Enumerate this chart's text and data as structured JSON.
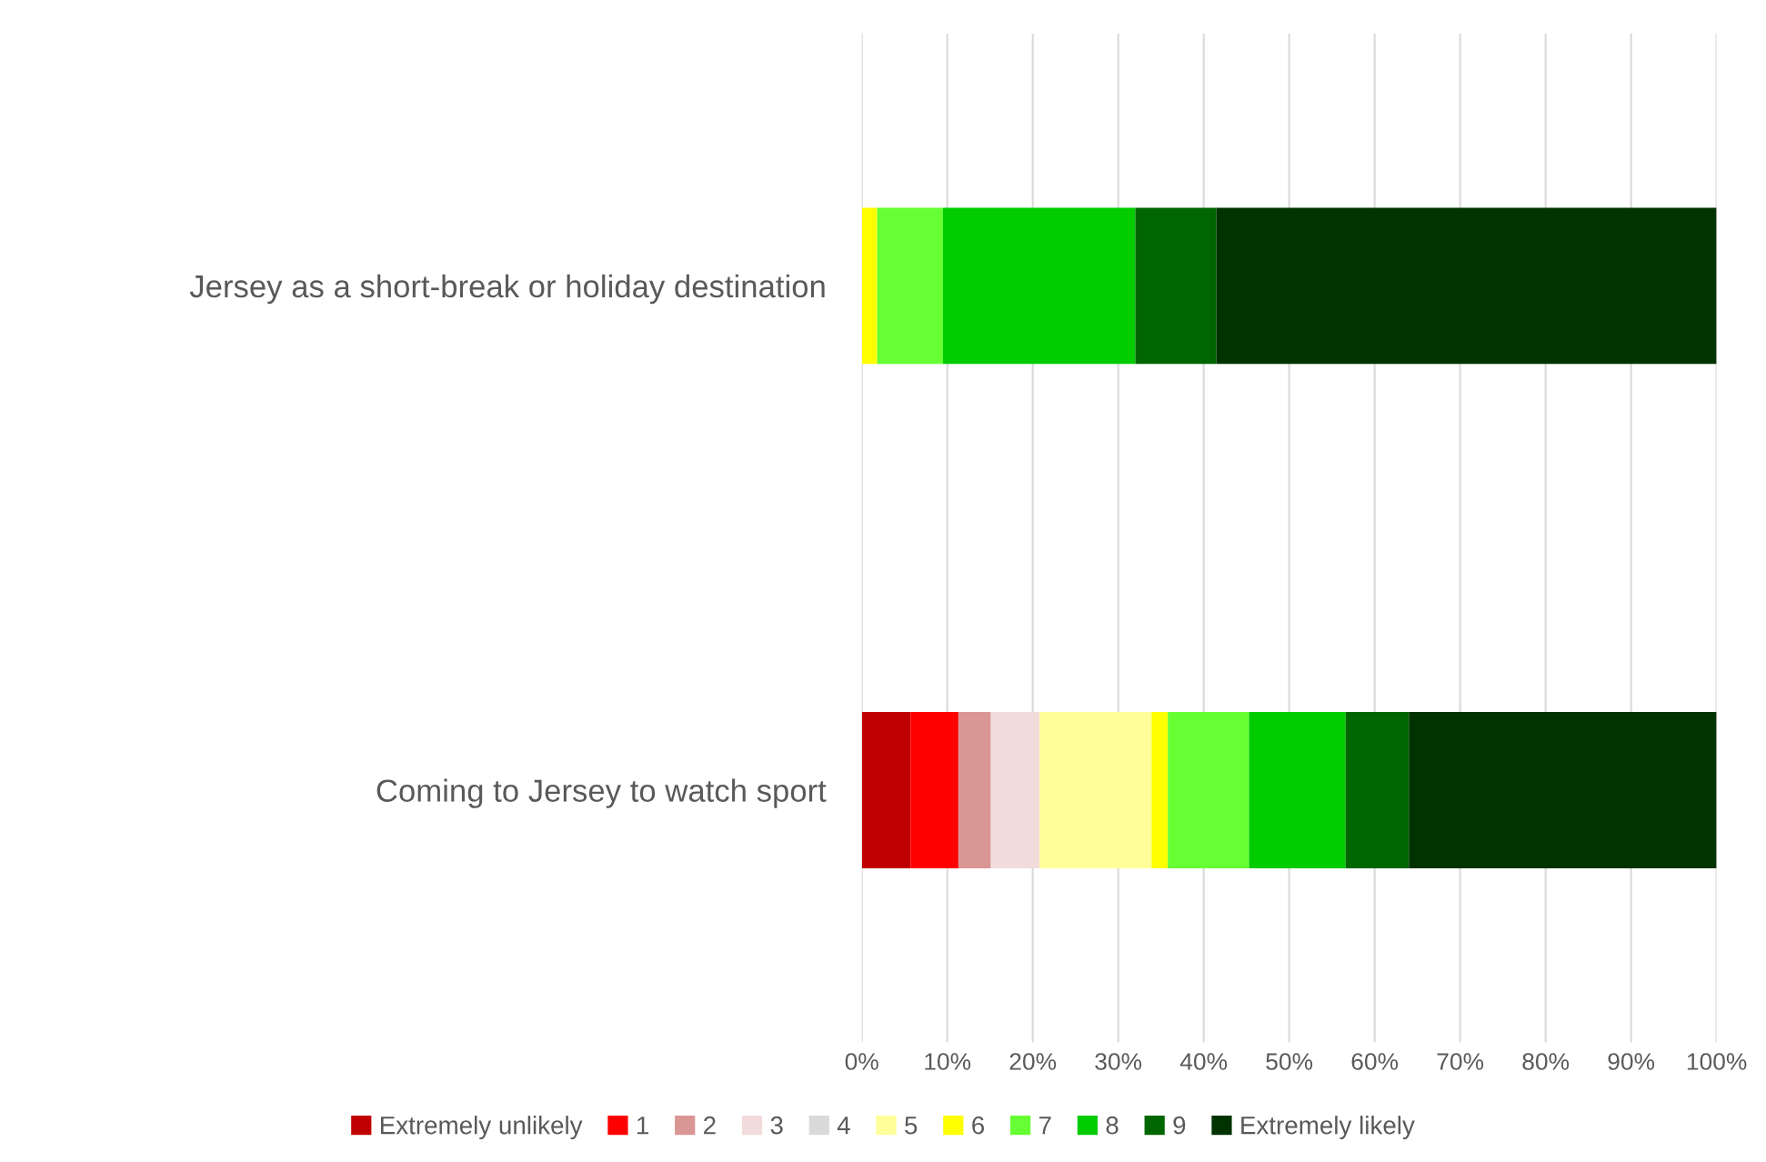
{
  "chart_data": {
    "type": "bar",
    "orientation": "horizontal",
    "stacked": true,
    "categories": [
      "Jersey as a short-break or holiday destination",
      "Coming to Jersey to watch sport"
    ],
    "series": [
      {
        "name": "Extremely unlikely",
        "color": "#c00000",
        "values": [
          0,
          5.7
        ]
      },
      {
        "name": "1",
        "color": "#ff0000",
        "values": [
          0,
          5.6
        ]
      },
      {
        "name": "2",
        "color": "#da9694",
        "values": [
          0,
          3.8
        ]
      },
      {
        "name": "3",
        "color": "#f2dcdb",
        "values": [
          0,
          5.7
        ]
      },
      {
        "name": "4",
        "color": "#d9d9d9",
        "values": [
          0,
          0
        ]
      },
      {
        "name": "5",
        "color": "#ffff99",
        "values": [
          0,
          13.1
        ]
      },
      {
        "name": "6",
        "color": "#ffff00",
        "values": [
          1.8,
          1.9
        ]
      },
      {
        "name": "7",
        "color": "#66ff33",
        "values": [
          7.7,
          9.5
        ]
      },
      {
        "name": "8",
        "color": "#00cc00",
        "values": [
          22.5,
          11.3
        ]
      },
      {
        "name": "9",
        "color": "#006600",
        "values": [
          9.5,
          7.4
        ]
      },
      {
        "name": "Extremely likely",
        "color": "#003300",
        "values": [
          58.5,
          36.0
        ]
      }
    ],
    "xlim": [
      0,
      100
    ],
    "xticks": [
      {
        "value": 0,
        "label": "0%"
      },
      {
        "value": 10,
        "label": "10%"
      },
      {
        "value": 20,
        "label": "20%"
      },
      {
        "value": 30,
        "label": "30%"
      },
      {
        "value": 40,
        "label": "40%"
      },
      {
        "value": 50,
        "label": "50%"
      },
      {
        "value": 60,
        "label": "60%"
      },
      {
        "value": 70,
        "label": "70%"
      },
      {
        "value": 80,
        "label": "80%"
      },
      {
        "value": 90,
        "label": "90%"
      },
      {
        "value": 100,
        "label": "100%"
      }
    ],
    "grid": "x",
    "legend": "bottom"
  }
}
